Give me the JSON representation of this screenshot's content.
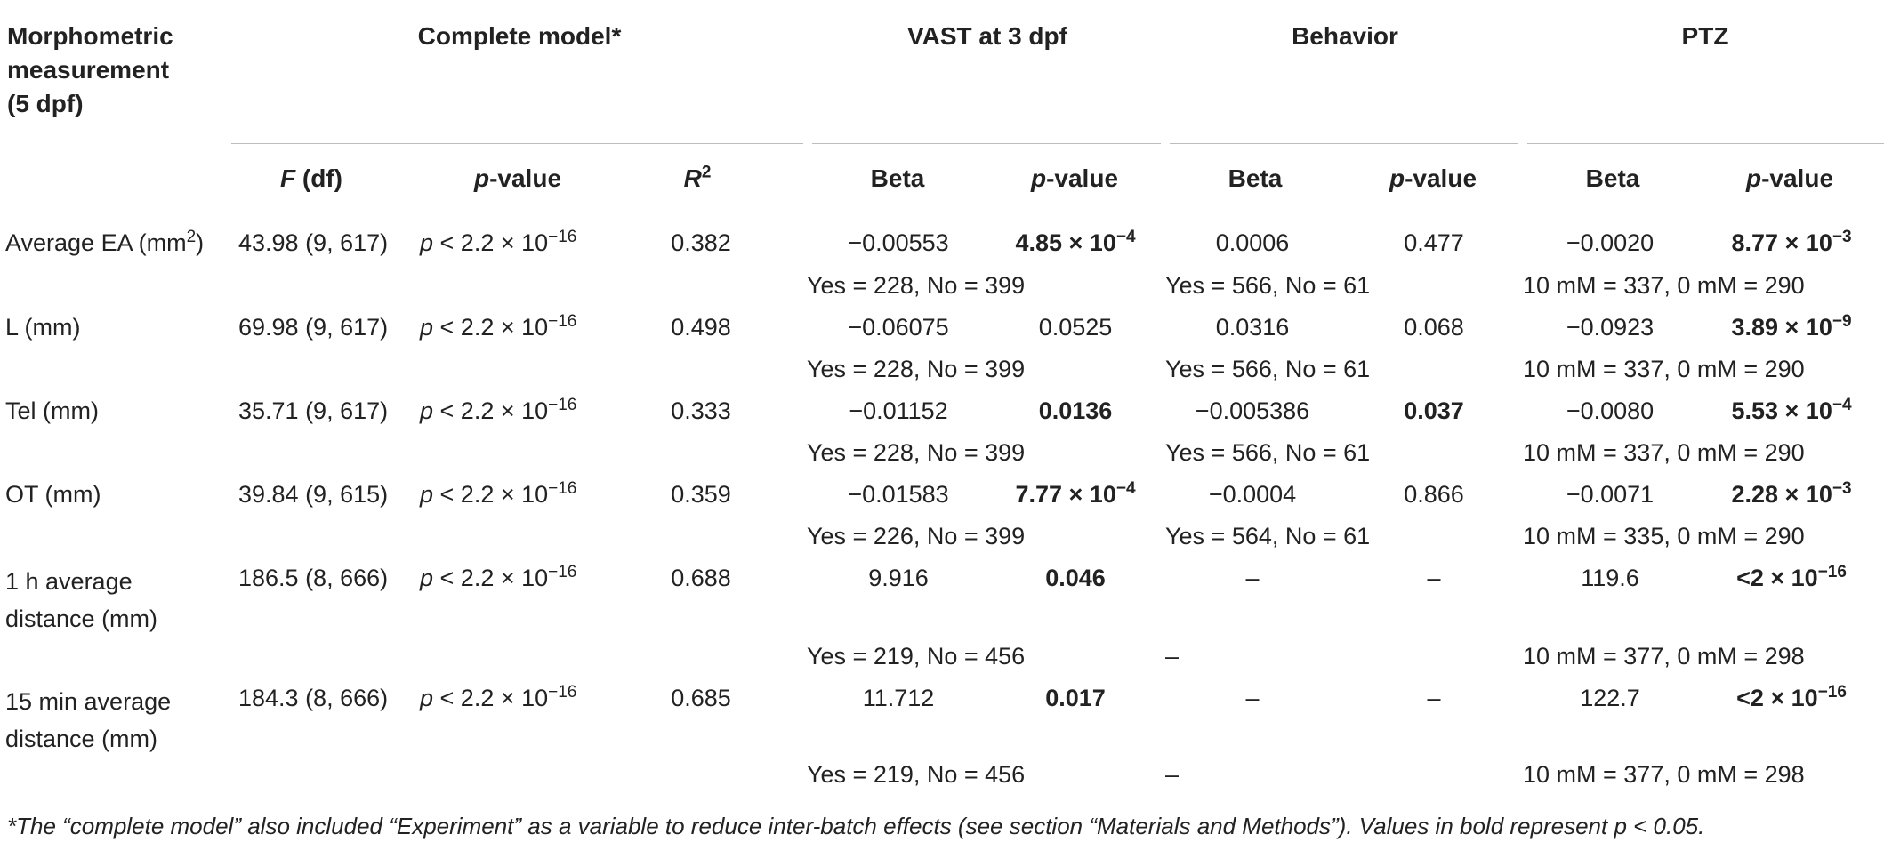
{
  "header": {
    "col_group_1": "Morphometric measurement (5 dpf)",
    "col_group_1_lines": [
      "Morphometric",
      "measurement",
      "(5 dpf)"
    ],
    "complete_model": "Complete model*",
    "vast": "VAST at 3 dpf",
    "behavior": "Behavior",
    "ptz": "PTZ",
    "sub": {
      "f_df_italic": "F",
      "f_df_rest": " (df)",
      "pvalue_italic": "p",
      "pvalue_rest": "-value",
      "r2_base": "R",
      "r2_sup": "2",
      "beta": "Beta"
    }
  },
  "rows": [
    {
      "measure_lines": [
        "Average EA (mm",
        ")"
      ],
      "measure_sup": "2",
      "f_df": "43.98 (9, 617)",
      "p_model": "p < 2.2 × 10",
      "p_model_exp": "−16",
      "r2": "0.382",
      "vast_beta": "−0.00553",
      "vast_p": "4.85 × 10",
      "vast_p_exp": "−4",
      "beh_beta": "0.0006",
      "beh_p": "0.477",
      "ptz_beta": "−0.0020",
      "ptz_p": "8.77 × 10",
      "ptz_p_exp": "−3",
      "vast_n": "Yes = 228, No = 399",
      "beh_n": "Yes = 566, No = 61",
      "ptz_n": "10 mM = 337, 0 mM = 290"
    },
    {
      "measure": "L (mm)",
      "f_df": "69.98 (9, 617)",
      "p_model": "p < 2.2 × 10",
      "p_model_exp": "−16",
      "r2": "0.498",
      "vast_beta": "−0.06075",
      "vast_p": "0.0525",
      "beh_beta": "0.0316",
      "beh_p": "0.068",
      "ptz_beta": "−0.0923",
      "ptz_p": "3.89 × 10",
      "ptz_p_exp": "−9",
      "vast_n": "Yes = 228, No = 399",
      "beh_n": "Yes = 566, No = 61",
      "ptz_n": "10 mM = 337, 0 mM = 290"
    },
    {
      "measure": "Tel (mm)",
      "f_df": "35.71 (9, 617)",
      "p_model": "p < 2.2 × 10",
      "p_model_exp": "−16",
      "r2": "0.333",
      "vast_beta": "−0.01152",
      "vast_p": "0.0136",
      "beh_beta": "−0.005386",
      "beh_p": "0.037",
      "ptz_beta": "−0.0080",
      "ptz_p": "5.53 × 10",
      "ptz_p_exp": "−4",
      "vast_n": "Yes = 228, No = 399",
      "beh_n": "Yes = 566, No = 61",
      "ptz_n": "10 mM = 337, 0 mM = 290"
    },
    {
      "measure": "OT (mm)",
      "f_df": "39.84 (9, 615)",
      "p_model": "p < 2.2 × 10",
      "p_model_exp": "−16",
      "r2": "0.359",
      "vast_beta": "−0.01583",
      "vast_p": "7.77 × 10",
      "vast_p_exp": "−4",
      "beh_beta": "−0.0004",
      "beh_p": "0.866",
      "ptz_beta": "−0.0071",
      "ptz_p": "2.28 × 10",
      "ptz_p_exp": "−3",
      "vast_n": "Yes = 226, No = 399",
      "beh_n": "Yes = 564, No = 61",
      "ptz_n": "10 mM = 335, 0 mM = 290"
    },
    {
      "measure_lines": [
        "1 h average",
        "distance (mm)"
      ],
      "f_df": "186.5 (8, 666)",
      "p_model": "p < 2.2 × 10",
      "p_model_exp": "−16",
      "r2": "0.688",
      "vast_beta": "9.916",
      "vast_p": "0.046",
      "beh_beta": "–",
      "beh_p": "–",
      "ptz_beta": "119.6",
      "ptz_p": "<2 × 10",
      "ptz_p_exp": "−16",
      "vast_n": "Yes = 219, No = 456",
      "beh_n": "–",
      "ptz_n": "10 mM = 377, 0 mM = 298"
    },
    {
      "measure_lines": [
        "15 min average",
        "distance (mm)"
      ],
      "f_df": "184.3 (8, 666)",
      "p_model": "p < 2.2 × 10",
      "p_model_exp": "−16",
      "r2": "0.685",
      "vast_beta": "11.712",
      "vast_p": "0.017",
      "beh_beta": "–",
      "beh_p": "–",
      "ptz_beta": "122.7",
      "ptz_p": "<2 × 10",
      "ptz_p_exp": "−16",
      "vast_n": "Yes = 219, No = 456",
      "beh_n": "–",
      "ptz_n": "10 mM = 377, 0 mM = 298"
    }
  ],
  "footnote": "*The “complete model” also included “Experiment” as a variable to reduce inter-batch effects (see section “Materials and Methods”). Values in bold represent p < 0.05."
}
